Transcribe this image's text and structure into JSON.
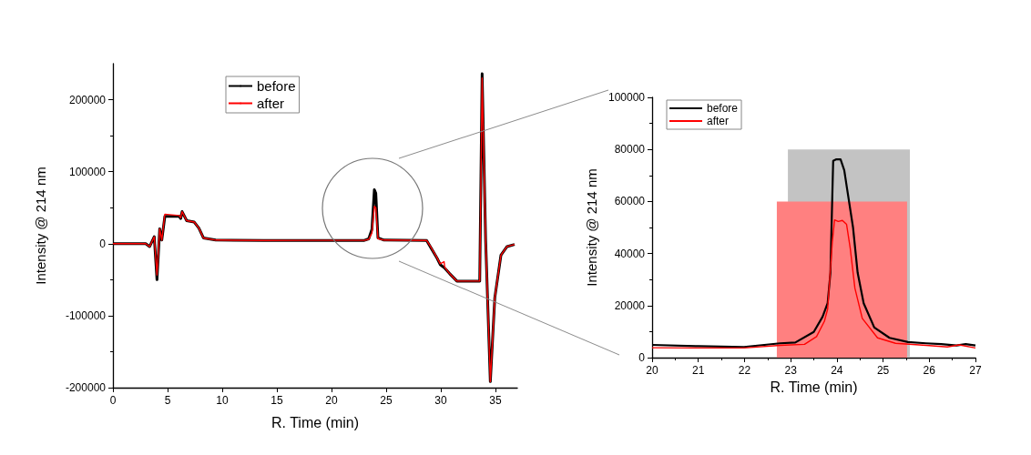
{
  "chart_data": [
    {
      "type": "line",
      "xlabel": "R. Time (min)",
      "ylabel": "Intensity @ 214 nm",
      "xlim": [
        0,
        37
      ],
      "xticks": [
        0,
        5,
        10,
        15,
        20,
        25,
        30,
        35
      ],
      "ylim": [
        -200000,
        250000
      ],
      "yticks": [
        -200000,
        -100000,
        0,
        100000,
        200000
      ],
      "legend": "top",
      "grid": false,
      "series": [
        {
          "name": "before",
          "color": "#000000",
          "x": [
            0,
            3.0,
            3.36,
            3.78,
            4.03,
            4.28,
            4.47,
            4.75,
            6.06,
            6.2,
            6.33,
            6.75,
            7.44,
            7.86,
            8.28,
            9.4,
            13.8,
            18,
            23.0,
            23.4,
            23.7,
            23.92,
            24.05,
            24.25,
            24.8,
            28.7,
            29.1,
            29.67,
            29.94,
            30.36,
            30.8,
            31.47,
            33.56,
            33.78,
            34.1,
            34.53,
            34.94,
            35.5,
            36.06,
            36.75
          ],
          "values": [
            0,
            0,
            -4000,
            9700,
            -50000,
            20700,
            5000,
            38000,
            38000,
            35000,
            44500,
            32000,
            30000,
            21700,
            8000,
            5000,
            4500,
            4600,
            4600,
            6700,
            20000,
            75000,
            70000,
            8000,
            5000,
            4500,
            -5800,
            -20500,
            -29000,
            -34000,
            -41500,
            -52000,
            -52000,
            236000,
            5000,
            -191600,
            -75000,
            -16000,
            -4000,
            -1000
          ]
        },
        {
          "name": "after",
          "color": "#ff0000",
          "x": [
            0,
            3.0,
            3.36,
            3.78,
            4.03,
            4.28,
            4.47,
            4.75,
            6.06,
            6.2,
            6.33,
            6.75,
            7.44,
            7.86,
            8.28,
            9.4,
            13.8,
            18,
            23.0,
            23.4,
            23.7,
            23.92,
            24.05,
            24.25,
            24.8,
            28.7,
            29.1,
            29.67,
            29.94,
            30.3,
            30.36,
            30.8,
            31.47,
            33.56,
            33.78,
            34.1,
            34.53,
            34.94,
            35.5,
            36.06,
            36.75
          ],
          "values": [
            0,
            0,
            -4000,
            9700,
            -43600,
            20700,
            5000,
            41000,
            39000,
            36000,
            44500,
            32000,
            30000,
            21700,
            8000,
            5000,
            4500,
            4600,
            4600,
            6000,
            15000,
            52000,
            50000,
            7000,
            5000,
            4500,
            -5000,
            -20000,
            -28000,
            -25000,
            -33000,
            -41500,
            -52000,
            -52000,
            230000,
            5000,
            -191600,
            -75000,
            -16000,
            -4000,
            -1000
          ]
        }
      ]
    },
    {
      "type": "line",
      "xlabel": "R. Time (min)",
      "ylabel": "Intensity @ 214 nm",
      "xlim": [
        20,
        27
      ],
      "xticks": [
        20,
        21,
        22,
        23,
        24,
        25,
        26,
        27
      ],
      "ylim": [
        0,
        100000
      ],
      "yticks": [
        0,
        20000,
        40000,
        60000,
        80000,
        100000
      ],
      "legend": "top left",
      "grid": false,
      "series": [
        {
          "type": "area",
          "color": "#c3c3c3",
          "x": [
            22.94,
            25.58
          ],
          "values": [
            80000,
            80000
          ]
        },
        {
          "type": "area",
          "color": "#ff8080",
          "x": [
            22.7,
            25.52
          ],
          "values": [
            60000,
            60000
          ]
        },
        {
          "name": "before",
          "color": "#000000",
          "x": [
            20,
            21,
            21.99,
            22.77,
            23.1,
            23.5,
            23.69,
            23.8,
            23.86,
            23.92,
            23.99,
            24.08,
            24.16,
            24.22,
            24.35,
            24.45,
            24.58,
            24.81,
            25.14,
            25.54,
            25.93,
            26.26,
            26.59,
            26.79,
            27
          ],
          "values": [
            4900,
            4400,
            4100,
            5500,
            5800,
            9900,
            15700,
            20900,
            32600,
            75600,
            76200,
            76200,
            72000,
            65000,
            50000,
            32600,
            20900,
            11600,
            7600,
            6000,
            5500,
            5200,
            4700,
            5200,
            4700
          ]
        },
        {
          "name": "after",
          "color": "#ff0000",
          "x": [
            20,
            21,
            21.99,
            22.77,
            23.3,
            23.56,
            23.73,
            23.8,
            23.9,
            23.95,
            24.03,
            24.12,
            24.21,
            24.29,
            24.39,
            24.55,
            24.88,
            25.27,
            25.93,
            26.39,
            26.65,
            27
          ],
          "values": [
            3800,
            3700,
            3700,
            4700,
            5100,
            8100,
            14000,
            18600,
            44200,
            52900,
            52300,
            52700,
            51200,
            41900,
            26700,
            15100,
            7600,
            5500,
            4700,
            4100,
            4900,
            3700
          ]
        }
      ]
    }
  ]
}
